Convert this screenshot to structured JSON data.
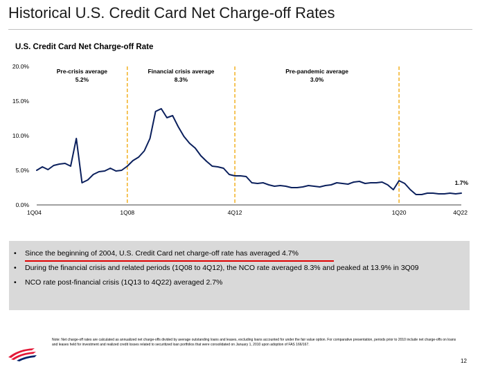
{
  "slide": {
    "title": "Historical U.S. Credit Card Net Charge-off Rates",
    "page_number": "12",
    "note": "Note: Net charge-off rates are calculated as annualized net charge-offs divided by average outstanding loans and leases, excluding loans accounted for under the fair value option. For comparative presentation, periods prior to 2010 include net charge-offs on loans and leases held for investment and realized credit losses related to securitized loan portfolios that were consolidated on January 1, 2010 upon adoption of FAS 166/167.",
    "bullets": [
      "Since the beginning of 2004, U.S. Credit Card net charge-off rate has averaged 4.7%",
      "During the financial crisis and related periods (1Q08 to 4Q12), the NCO rate averaged 8.3% and peaked at 13.9% in 3Q09",
      "NCO rate post-financial crisis (1Q13 to 4Q22) averaged 2.7%"
    ],
    "bullet_marker": "•",
    "colors": {
      "line": "#0a1f5c",
      "divider": "#f0a500",
      "highlight_underline": "#e00000",
      "box": "#d9d9d9",
      "logo_red": "#e31837",
      "logo_blue": "#012169"
    }
  },
  "chart_data": {
    "type": "line",
    "title": "U.S. Credit Card Net Charge-off Rate",
    "xlabel": "",
    "ylabel": "",
    "ylim": [
      0,
      20
    ],
    "y_ticks": [
      "0.0%",
      "5.0%",
      "10.0%",
      "15.0%",
      "20.0%"
    ],
    "x_tick_labels": [
      "1Q04",
      "1Q08",
      "4Q12",
      "1Q20",
      "4Q22"
    ],
    "grid": false,
    "dividers": [
      "1Q08",
      "4Q12",
      "1Q20"
    ],
    "regions": [
      {
        "label": "Pre-crisis average",
        "value": "5.2%"
      },
      {
        "label": "Financial crisis average",
        "value": "8.3%"
      },
      {
        "label": "Pre-pandemic average",
        "value": "3.0%"
      }
    ],
    "end_label": "1.7%",
    "series": [
      {
        "x": [
          "1Q04",
          "2Q04",
          "3Q04",
          "4Q04",
          "1Q05",
          "2Q05",
          "3Q05",
          "4Q05",
          "1Q06",
          "2Q06",
          "3Q06",
          "4Q06",
          "1Q07",
          "2Q07",
          "3Q07",
          "4Q07",
          "1Q08",
          "2Q08",
          "3Q08",
          "4Q08",
          "1Q09",
          "2Q09",
          "3Q09",
          "4Q09",
          "1Q10",
          "2Q10",
          "3Q10",
          "4Q10",
          "1Q11",
          "2Q11",
          "3Q11",
          "4Q11",
          "1Q12",
          "2Q12",
          "3Q12",
          "4Q12",
          "1Q13",
          "2Q13",
          "3Q13",
          "4Q13",
          "1Q14",
          "2Q14",
          "3Q14",
          "4Q14",
          "1Q15",
          "2Q15",
          "3Q15",
          "4Q15",
          "1Q16",
          "2Q16",
          "3Q16",
          "4Q16",
          "1Q17",
          "2Q17",
          "3Q17",
          "4Q17",
          "1Q18",
          "2Q18",
          "3Q18",
          "4Q18",
          "1Q19",
          "2Q19",
          "3Q19",
          "4Q19",
          "1Q20",
          "2Q20",
          "3Q20",
          "4Q20",
          "1Q21",
          "2Q21",
          "3Q21",
          "4Q21",
          "1Q22",
          "2Q22",
          "3Q22",
          "4Q22"
        ],
        "values": [
          5.0,
          5.5,
          5.1,
          5.7,
          5.9,
          6.0,
          5.6,
          9.6,
          3.2,
          3.6,
          4.4,
          4.8,
          4.9,
          5.3,
          4.9,
          5.0,
          5.6,
          6.4,
          6.9,
          7.8,
          9.6,
          13.5,
          13.9,
          12.6,
          12.9,
          11.3,
          9.9,
          8.9,
          8.2,
          7.1,
          6.3,
          5.6,
          5.5,
          5.3,
          4.4,
          4.2,
          4.2,
          4.1,
          3.2,
          3.1,
          3.2,
          2.9,
          2.7,
          2.8,
          2.7,
          2.5,
          2.5,
          2.6,
          2.8,
          2.7,
          2.6,
          2.8,
          2.9,
          3.2,
          3.1,
          3.0,
          3.3,
          3.4,
          3.1,
          3.2,
          3.2,
          3.3,
          2.9,
          2.2,
          3.5,
          3.1,
          2.2,
          1.5,
          1.5,
          1.7,
          1.7,
          1.6,
          1.6,
          1.7,
          1.6,
          1.7
        ]
      }
    ]
  }
}
